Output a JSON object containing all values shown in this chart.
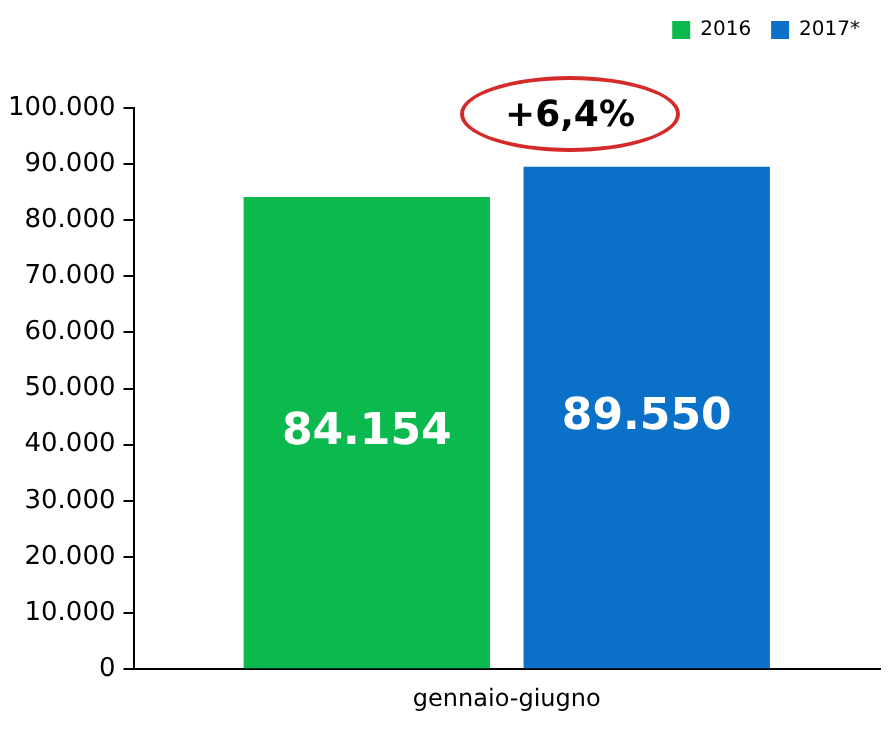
{
  "chart_data": {
    "type": "bar",
    "categories": [
      "gennaio-giugno"
    ],
    "series": [
      {
        "name": "2016",
        "color": "#0bb94f",
        "values": [
          84154
        ],
        "value_labels": [
          "84.154"
        ]
      },
      {
        "name": "2017*",
        "color": "#0a70c8",
        "values": [
          89550
        ],
        "value_labels": [
          "89.550"
        ]
      }
    ],
    "ylim": [
      0,
      100000
    ],
    "yticks": [
      {
        "value": 0,
        "label": "0"
      },
      {
        "value": 10000,
        "label": "10.000"
      },
      {
        "value": 20000,
        "label": "20.000"
      },
      {
        "value": 30000,
        "label": "30.000"
      },
      {
        "value": 40000,
        "label": "40.000"
      },
      {
        "value": 50000,
        "label": "50.000"
      },
      {
        "value": 60000,
        "label": "60.000"
      },
      {
        "value": 70000,
        "label": "70.000"
      },
      {
        "value": 80000,
        "label": "80.000"
      },
      {
        "value": 90000,
        "label": "90.000"
      },
      {
        "value": 100000,
        "label": "100.000"
      }
    ],
    "grid": false,
    "legend": "top right",
    "annotations": [
      "+6,4%"
    ]
  }
}
